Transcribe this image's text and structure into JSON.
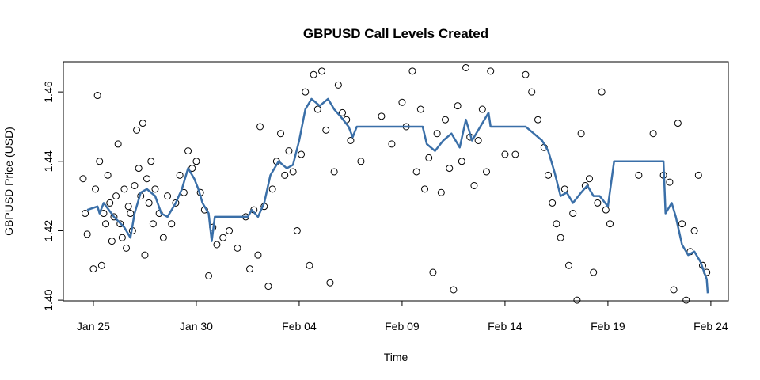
{
  "chart_data": {
    "type": "scatter",
    "title": "GBPUSD Call Levels Created",
    "xlabel": "Time",
    "ylabel": "GBPUSD Price (USD)",
    "xlim": [
      -1.46,
      30.85
    ],
    "ylim": [
      1.3998,
      1.4687
    ],
    "xticks": [
      {
        "value": 0,
        "label": "Jan 25"
      },
      {
        "value": 5,
        "label": "Jan 30"
      },
      {
        "value": 10,
        "label": "Feb 04"
      },
      {
        "value": 15,
        "label": "Feb 09"
      },
      {
        "value": 20,
        "label": "Feb 14"
      },
      {
        "value": 25,
        "label": "Feb 19"
      },
      {
        "value": 30,
        "label": "Feb 24"
      }
    ],
    "yticks": [
      {
        "value": 1.4,
        "label": "1.40"
      },
      1.42,
      1.44,
      1.46
    ],
    "series": [
      {
        "type": "scatter",
        "color": "#000000",
        "x": [
          -0.5,
          -0.4,
          -0.3,
          0.0,
          0.1,
          0.2,
          0.3,
          0.4,
          0.5,
          0.6,
          0.7,
          0.8,
          0.9,
          1.0,
          1.1,
          1.2,
          1.3,
          1.4,
          1.5,
          1.6,
          1.7,
          1.8,
          1.9,
          2.0,
          2.1,
          2.2,
          2.3,
          2.4,
          2.5,
          2.6,
          2.7,
          2.8,
          2.9,
          3.0,
          3.2,
          3.4,
          3.6,
          3.8,
          4.0,
          4.2,
          4.4,
          4.6,
          4.8,
          5.0,
          5.2,
          5.4,
          5.6,
          5.8,
          6.0,
          6.3,
          6.6,
          7.0,
          7.4,
          7.6,
          7.8,
          8.0,
          8.1,
          8.3,
          8.5,
          8.7,
          8.9,
          9.1,
          9.3,
          9.5,
          9.7,
          9.9,
          10.1,
          10.3,
          10.5,
          10.7,
          10.9,
          11.1,
          11.3,
          11.5,
          11.7,
          11.9,
          12.1,
          12.3,
          12.5,
          13.0,
          14.0,
          14.5,
          15.0,
          15.2,
          15.5,
          15.7,
          15.9,
          16.1,
          16.3,
          16.5,
          16.7,
          16.9,
          17.1,
          17.3,
          17.5,
          17.7,
          17.9,
          18.1,
          18.3,
          18.5,
          18.7,
          18.9,
          19.1,
          19.3,
          20.0,
          20.5,
          21.0,
          21.3,
          21.6,
          21.9,
          22.1,
          22.3,
          22.5,
          22.7,
          22.9,
          23.1,
          23.3,
          23.5,
          23.7,
          23.9,
          24.1,
          24.3,
          24.5,
          24.7,
          24.9,
          25.1,
          26.5,
          27.2,
          27.7,
          28.0,
          28.2,
          28.4,
          28.6,
          28.8,
          29.0,
          29.2,
          29.4,
          29.6,
          29.8
        ],
        "values": [
          1.435,
          1.425,
          1.419,
          1.409,
          1.432,
          1.459,
          1.44,
          1.41,
          1.425,
          1.422,
          1.436,
          1.428,
          1.417,
          1.424,
          1.43,
          1.445,
          1.422,
          1.418,
          1.432,
          1.415,
          1.427,
          1.425,
          1.42,
          1.433,
          1.449,
          1.438,
          1.43,
          1.451,
          1.413,
          1.435,
          1.428,
          1.44,
          1.422,
          1.432,
          1.425,
          1.418,
          1.43,
          1.422,
          1.428,
          1.436,
          1.431,
          1.443,
          1.438,
          1.44,
          1.431,
          1.426,
          1.407,
          1.421,
          1.416,
          1.418,
          1.42,
          1.415,
          1.424,
          1.409,
          1.426,
          1.413,
          1.45,
          1.427,
          1.404,
          1.432,
          1.44,
          1.448,
          1.436,
          1.443,
          1.437,
          1.42,
          1.442,
          1.46,
          1.41,
          1.465,
          1.455,
          1.466,
          1.449,
          1.405,
          1.437,
          1.462,
          1.454,
          1.452,
          1.446,
          1.44,
          1.453,
          1.445,
          1.457,
          1.45,
          1.466,
          1.437,
          1.455,
          1.432,
          1.441,
          1.408,
          1.448,
          1.431,
          1.452,
          1.438,
          1.403,
          1.456,
          1.44,
          1.467,
          1.447,
          1.433,
          1.446,
          1.455,
          1.437,
          1.466,
          1.442,
          1.442,
          1.465,
          1.46,
          1.452,
          1.444,
          1.436,
          1.428,
          1.422,
          1.418,
          1.432,
          1.41,
          1.425,
          1.4,
          1.448,
          1.433,
          1.435,
          1.408,
          1.428,
          1.46,
          1.426,
          1.422,
          1.436,
          1.448,
          1.436,
          1.434,
          1.403,
          1.451,
          1.422,
          1.4,
          1.414,
          1.42,
          1.436,
          1.41,
          1.408
        ]
      },
      {
        "type": "line",
        "color": "#3a6fa8",
        "x": [
          -0.3,
          0.2,
          0.3,
          0.5,
          1,
          1.5,
          1.8,
          2,
          2.3,
          2.6,
          3,
          3.3,
          3.6,
          4,
          4.3,
          4.6,
          4.9,
          5.1,
          5.3,
          5.6,
          5.75,
          5.9,
          7.5,
          7.7,
          8,
          8.3,
          8.6,
          9,
          9.4,
          9.7,
          10,
          10.3,
          10.6,
          11,
          11.4,
          11.7,
          12,
          12.4,
          12.6,
          12.8,
          16,
          16.2,
          16.6,
          17,
          17.4,
          17.8,
          18.1,
          18.4,
          18.8,
          19.2,
          19.3,
          21,
          21.4,
          21.8,
          22.1,
          22.4,
          22.7,
          23,
          23.3,
          23.7,
          24,
          24.3,
          24.6,
          25,
          25.3,
          27.7,
          27.8,
          28.1,
          28.3,
          28.6,
          28.9,
          29.2,
          29.5,
          29.8,
          29.85
        ],
        "values": [
          1.426,
          1.427,
          1.425,
          1.428,
          1.424,
          1.421,
          1.418,
          1.425,
          1.431,
          1.432,
          1.43,
          1.425,
          1.424,
          1.428,
          1.432,
          1.438,
          1.435,
          1.432,
          1.428,
          1.425,
          1.417,
          1.424,
          1.424,
          1.426,
          1.424,
          1.428,
          1.436,
          1.44,
          1.438,
          1.439,
          1.446,
          1.455,
          1.458,
          1.456,
          1.458,
          1.455,
          1.453,
          1.45,
          1.447,
          1.45,
          1.45,
          1.445,
          1.443,
          1.446,
          1.448,
          1.444,
          1.452,
          1.446,
          1.45,
          1.454,
          1.45,
          1.45,
          1.448,
          1.446,
          1.443,
          1.437,
          1.43,
          1.431,
          1.428,
          1.431,
          1.433,
          1.43,
          1.43,
          1.427,
          1.44,
          1.44,
          1.425,
          1.428,
          1.424,
          1.416,
          1.413,
          1.414,
          1.411,
          1.406,
          1.402
        ]
      }
    ]
  }
}
